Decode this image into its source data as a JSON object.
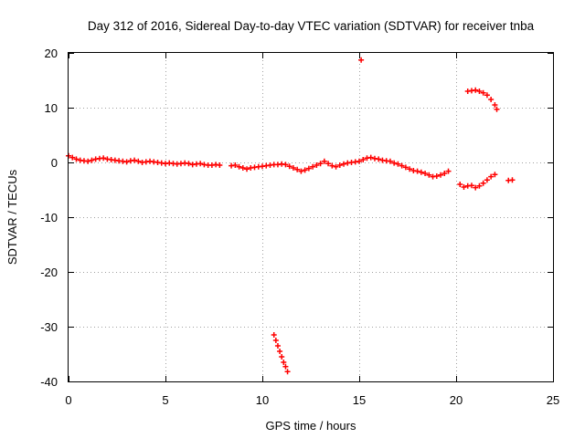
{
  "chart_data": {
    "type": "scatter",
    "title": "Day 312 of 2016, Sidereal Day-to-day VTEC variation (SDTVAR) for receiver tnba",
    "xlabel": "GPS time / hours",
    "ylabel": "SDTVAR / TECUs",
    "xlim": [
      0,
      25
    ],
    "ylim": [
      -40,
      20
    ],
    "xticks": [
      0,
      5,
      10,
      15,
      20,
      25
    ],
    "yticks": [
      -40,
      -30,
      -20,
      -10,
      0,
      10,
      20
    ],
    "grid": true,
    "legend": "none",
    "marker": "plus",
    "color": "#ff0000",
    "series": [
      {
        "name": "SDTVAR",
        "points": [
          [
            0.0,
            1.2
          ],
          [
            0.2,
            0.9
          ],
          [
            0.4,
            0.6
          ],
          [
            0.6,
            0.4
          ],
          [
            0.8,
            0.3
          ],
          [
            1.0,
            0.2
          ],
          [
            1.2,
            0.4
          ],
          [
            1.4,
            0.6
          ],
          [
            1.6,
            0.7
          ],
          [
            1.8,
            0.8
          ],
          [
            2.0,
            0.6
          ],
          [
            2.2,
            0.5
          ],
          [
            2.4,
            0.4
          ],
          [
            2.6,
            0.3
          ],
          [
            2.8,
            0.2
          ],
          [
            3.0,
            0.1
          ],
          [
            3.2,
            0.3
          ],
          [
            3.4,
            0.4
          ],
          [
            3.6,
            0.2
          ],
          [
            3.8,
            0.0
          ],
          [
            4.0,
            0.1
          ],
          [
            4.2,
            0.2
          ],
          [
            4.4,
            0.1
          ],
          [
            4.6,
            0.0
          ],
          [
            4.8,
            -0.1
          ],
          [
            5.0,
            -0.2
          ],
          [
            5.2,
            -0.1
          ],
          [
            5.4,
            -0.2
          ],
          [
            5.6,
            -0.3
          ],
          [
            5.8,
            -0.2
          ],
          [
            6.0,
            -0.1
          ],
          [
            6.2,
            -0.2
          ],
          [
            6.4,
            -0.4
          ],
          [
            6.6,
            -0.3
          ],
          [
            6.8,
            -0.2
          ],
          [
            7.0,
            -0.4
          ],
          [
            7.2,
            -0.5
          ],
          [
            7.4,
            -0.5
          ],
          [
            7.6,
            -0.4
          ],
          [
            7.8,
            -0.5
          ],
          [
            8.4,
            -0.6
          ],
          [
            8.6,
            -0.5
          ],
          [
            8.8,
            -0.8
          ],
          [
            9.0,
            -1.0
          ],
          [
            9.2,
            -1.2
          ],
          [
            9.4,
            -1.0
          ],
          [
            9.6,
            -0.9
          ],
          [
            9.8,
            -0.8
          ],
          [
            10.0,
            -0.7
          ],
          [
            10.2,
            -0.6
          ],
          [
            10.4,
            -0.5
          ],
          [
            10.6,
            -0.4
          ],
          [
            10.8,
            -0.4
          ],
          [
            11.0,
            -0.3
          ],
          [
            11.2,
            -0.4
          ],
          [
            11.4,
            -0.7
          ],
          [
            11.6,
            -1.0
          ],
          [
            11.8,
            -1.3
          ],
          [
            12.0,
            -1.6
          ],
          [
            12.2,
            -1.4
          ],
          [
            12.4,
            -1.1
          ],
          [
            12.6,
            -0.8
          ],
          [
            12.8,
            -0.5
          ],
          [
            13.0,
            -0.2
          ],
          [
            13.2,
            0.2
          ],
          [
            13.4,
            -0.2
          ],
          [
            13.6,
            -0.6
          ],
          [
            13.8,
            -0.8
          ],
          [
            14.0,
            -0.5
          ],
          [
            14.2,
            -0.3
          ],
          [
            14.4,
            -0.1
          ],
          [
            14.6,
            0.0
          ],
          [
            14.8,
            0.1
          ],
          [
            15.0,
            0.2
          ],
          [
            15.2,
            0.5
          ],
          [
            15.4,
            0.8
          ],
          [
            15.6,
            0.9
          ],
          [
            15.8,
            0.7
          ],
          [
            16.0,
            0.6
          ],
          [
            16.2,
            0.4
          ],
          [
            16.4,
            0.3
          ],
          [
            16.6,
            0.2
          ],
          [
            16.8,
            -0.1
          ],
          [
            17.0,
            -0.3
          ],
          [
            17.2,
            -0.6
          ],
          [
            17.4,
            -0.9
          ],
          [
            17.6,
            -1.2
          ],
          [
            17.8,
            -1.5
          ],
          [
            18.0,
            -1.6
          ],
          [
            18.2,
            -1.8
          ],
          [
            18.4,
            -2.0
          ],
          [
            18.6,
            -2.3
          ],
          [
            18.8,
            -2.6
          ],
          [
            19.0,
            -2.5
          ],
          [
            19.2,
            -2.3
          ],
          [
            19.4,
            -2.0
          ],
          [
            19.6,
            -1.6
          ],
          [
            10.6,
            -31.5
          ],
          [
            10.7,
            -32.5
          ],
          [
            10.8,
            -33.5
          ],
          [
            10.9,
            -34.5
          ],
          [
            11.0,
            -35.5
          ],
          [
            11.1,
            -36.5
          ],
          [
            11.2,
            -37.3
          ],
          [
            11.3,
            -38.2
          ],
          [
            15.1,
            18.7
          ],
          [
            20.2,
            -4.0
          ],
          [
            20.4,
            -4.5
          ],
          [
            20.6,
            -4.3
          ],
          [
            20.8,
            -4.2
          ],
          [
            21.0,
            -4.6
          ],
          [
            21.2,
            -4.3
          ],
          [
            21.4,
            -3.8
          ],
          [
            21.6,
            -3.2
          ],
          [
            21.8,
            -2.6
          ],
          [
            22.0,
            -2.2
          ],
          [
            22.7,
            -3.3
          ],
          [
            22.9,
            -3.2
          ],
          [
            20.6,
            13.0
          ],
          [
            20.8,
            13.1
          ],
          [
            21.0,
            13.2
          ],
          [
            21.2,
            13.0
          ],
          [
            21.4,
            12.7
          ],
          [
            21.6,
            12.3
          ],
          [
            21.8,
            11.5
          ],
          [
            22.0,
            10.5
          ],
          [
            22.1,
            9.7
          ]
        ]
      }
    ]
  }
}
